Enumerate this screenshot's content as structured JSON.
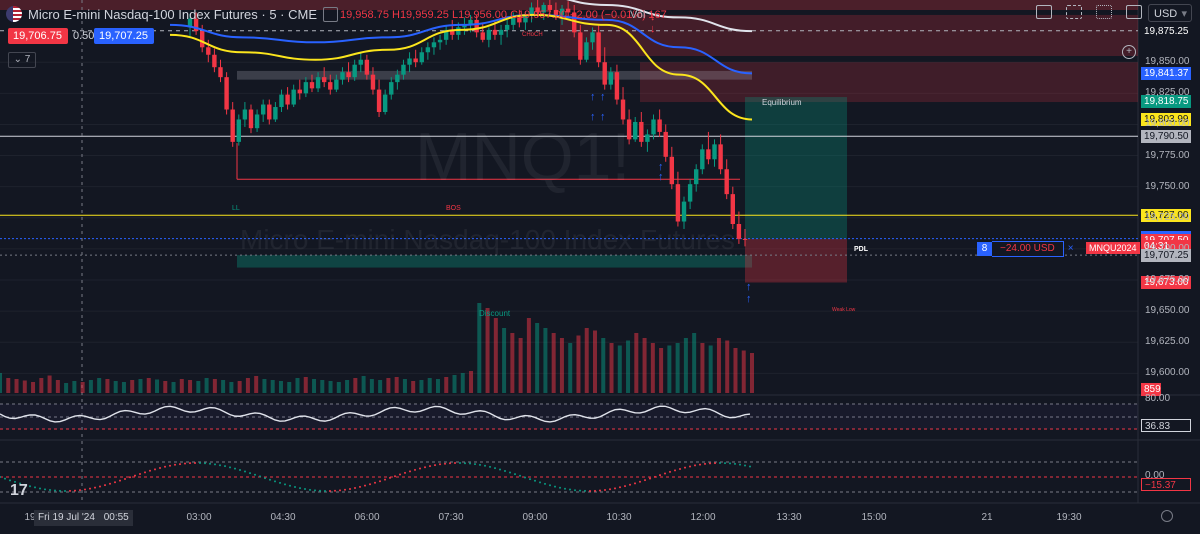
{
  "header": {
    "title": "Micro E-mini Nasdaq-100 Index Futures · 5 · CME",
    "open": "19,958.75",
    "high": "H19,959.25",
    "low": "L19,956.00",
    "close": "C19,957.00",
    "change": "−2.00 (−0.01%)",
    "vol_label": "Vol",
    "vol_value": "167"
  },
  "trade": {
    "sell_price": "19,706.75",
    "spread": "0.50",
    "buy_price": "19,707.25"
  },
  "collapse_label": "⌄ 7",
  "toolbar": {
    "currency": "USD",
    "icons": [
      "rectangle-icon",
      "indicators-icon",
      "alert-icon",
      "fullscreen-icon"
    ]
  },
  "position": {
    "qty": "8",
    "pnl": "−24.00 USD",
    "close_x": "×",
    "symbol": "MNQU2024"
  },
  "watermark": {
    "symbol": "MNQ1!",
    "name": "Micro E-mini Nasdaq-100 Index Futures"
  },
  "annotations": {
    "ll": "LL",
    "bos": "BOS",
    "choch": "CHoCH",
    "equilibrium": "Equilibrium",
    "discount": "Discount",
    "weak_low": "Weak Low",
    "pdl": "PDL",
    "bos2": "BOS"
  },
  "price_labels": [
    {
      "text": "19,875.25",
      "bg": "#131722",
      "fg": "#ffffff",
      "y": 19875.25
    },
    {
      "text": "19,841.37",
      "bg": "#2962ff",
      "fg": "#ffffff",
      "y": 19841.37
    },
    {
      "text": "19,818.75",
      "bg": "#089981",
      "fg": "#ffffff",
      "y": 19818.75
    },
    {
      "text": "19,803.99",
      "bg": "#fbe51d",
      "fg": "#131722",
      "y": 19803.99
    },
    {
      "text": "19,790.50",
      "bg": "#b2b5be",
      "fg": "#131722",
      "y": 19790.5
    },
    {
      "text": "19,727.00",
      "bg": "#fbe51d",
      "fg": "#131722",
      "y": 19727.0
    },
    {
      "text": "19,709.25",
      "bg": "#2962ff",
      "fg": "#ffffff",
      "y": 19709.25
    },
    {
      "text": "19,708.25",
      "bg": "#2962ff",
      "fg": "#ffffff",
      "y": 19708.25
    },
    {
      "text": "19,707.50",
      "bg": "#f23645",
      "fg": "#ffffff",
      "y": 19707.5
    },
    {
      "text": "04:31",
      "bg": "#f23645",
      "fg": "#ffffff",
      "y": 19702.0
    },
    {
      "text": "19,707.25",
      "bg": "#b2b5be",
      "fg": "#131722",
      "y": 19695.0
    },
    {
      "text": "19,673.00",
      "bg": "#f23645",
      "fg": "#ffffff",
      "y": 19673.0
    }
  ],
  "volume_label": "859",
  "osc1": {
    "level_top": "80.00",
    "value": "36.83"
  },
  "osc2": {
    "level": "0.00",
    "value": "−15.37"
  },
  "time_axis": {
    "date_box": "Fri 19 Jul '24",
    "date_time": "00:55",
    "first": "19",
    "ticks": [
      "03:00",
      "04:30",
      "06:00",
      "07:30",
      "09:00",
      "10:30",
      "12:00",
      "13:30",
      "15:00",
      "21",
      "19:30"
    ]
  },
  "colors": {
    "up": "#089981",
    "down": "#f23645",
    "ma_blue": "#2962ff",
    "ma_yellow": "#fbe51d",
    "ma_white": "#e0e3eb",
    "bg": "#131722"
  },
  "chart_data": {
    "type": "candlestick",
    "symbol": "MNQ1!",
    "interval": "5",
    "y_axis_ticks": [
      19850,
      19825,
      19800,
      19775,
      19750,
      19725,
      19700,
      19675,
      19650,
      19625,
      19600
    ],
    "ylim": [
      19585,
      19900
    ],
    "x_ticks": [
      "03:00",
      "04:30",
      "06:00",
      "07:30",
      "09:00",
      "10:30",
      "12:00",
      "13:30",
      "15:00",
      "21",
      "19:30"
    ],
    "candles": [
      [
        19878,
        19889,
        19870,
        19885
      ],
      [
        19885,
        19890,
        19872,
        19875
      ],
      [
        19875,
        19880,
        19858,
        19862
      ],
      [
        19862,
        19868,
        19850,
        19856
      ],
      [
        19856,
        19861,
        19842,
        19846
      ],
      [
        19846,
        19852,
        19834,
        19838
      ],
      [
        19838,
        19842,
        19808,
        19812
      ],
      [
        19812,
        19818,
        19782,
        19786
      ],
      [
        19786,
        19808,
        19783,
        19804
      ],
      [
        19804,
        19818,
        19798,
        19812
      ],
      [
        19812,
        19816,
        19793,
        19797
      ],
      [
        19797,
        19812,
        19794,
        19808
      ],
      [
        19808,
        19820,
        19802,
        19816
      ],
      [
        19816,
        19820,
        19800,
        19804
      ],
      [
        19804,
        19818,
        19802,
        19814
      ],
      [
        19814,
        19828,
        19810,
        19824
      ],
      [
        19824,
        19830,
        19812,
        19816
      ],
      [
        19816,
        19832,
        19814,
        19828
      ],
      [
        19828,
        19836,
        19820,
        19825
      ],
      [
        19825,
        19838,
        19822,
        19834
      ],
      [
        19834,
        19840,
        19826,
        19829
      ],
      [
        19829,
        19842,
        19826,
        19838
      ],
      [
        19838,
        19846,
        19830,
        19834
      ],
      [
        19834,
        19840,
        19824,
        19828
      ],
      [
        19828,
        19840,
        19826,
        19836
      ],
      [
        19836,
        19846,
        19832,
        19842
      ],
      [
        19842,
        19850,
        19834,
        19838
      ],
      [
        19838,
        19852,
        19835,
        19848
      ],
      [
        19848,
        19858,
        19842,
        19852
      ],
      [
        19852,
        19856,
        19836,
        19840
      ],
      [
        19840,
        19846,
        19824,
        19828
      ],
      [
        19828,
        19836,
        19806,
        19810
      ],
      [
        19810,
        19828,
        19808,
        19824
      ],
      [
        19824,
        19838,
        19820,
        19834
      ],
      [
        19834,
        19844,
        19828,
        19840
      ],
      [
        19840,
        19852,
        19836,
        19848
      ],
      [
        19848,
        19858,
        19842,
        19853
      ],
      [
        19853,
        19860,
        19846,
        19850
      ],
      [
        19850,
        19862,
        19848,
        19858
      ],
      [
        19858,
        19866,
        19852,
        19862
      ],
      [
        19862,
        19870,
        19856,
        19866
      ],
      [
        19866,
        19872,
        19860,
        19868
      ],
      [
        19868,
        19880,
        19864,
        19876
      ],
      [
        19876,
        19884,
        19868,
        19872
      ],
      [
        19872,
        19882,
        19868,
        19878
      ],
      [
        19878,
        19886,
        19872,
        19880
      ],
      [
        19880,
        19888,
        19874,
        19884
      ],
      [
        19884,
        19888,
        19870,
        19874
      ],
      [
        19874,
        19882,
        19866,
        19868
      ],
      [
        19868,
        19878,
        19862,
        19876
      ],
      [
        19876,
        19884,
        19868,
        19872
      ],
      [
        19872,
        19880,
        19864,
        19876
      ],
      [
        19876,
        19884,
        19870,
        19880
      ],
      [
        19880,
        19890,
        19876,
        19886
      ],
      [
        19886,
        19892,
        19878,
        19882
      ],
      [
        19882,
        19890,
        19876,
        19888
      ],
      [
        19888,
        19898,
        19882,
        19894
      ],
      [
        19894,
        19900,
        19886,
        19890
      ],
      [
        19890,
        19898,
        19884,
        19896
      ],
      [
        19896,
        19900,
        19888,
        19892
      ],
      [
        19892,
        19898,
        19884,
        19888
      ],
      [
        19888,
        19896,
        19880,
        19893
      ],
      [
        19893,
        19899,
        19886,
        19890
      ],
      [
        19890,
        19896,
        19870,
        19874
      ],
      [
        19874,
        19880,
        19848,
        19852
      ],
      [
        19852,
        19870,
        19850,
        19866
      ],
      [
        19866,
        19878,
        19860,
        19874
      ],
      [
        19874,
        19880,
        19846,
        19850
      ],
      [
        19850,
        19862,
        19828,
        19832
      ],
      [
        19832,
        19846,
        19828,
        19842
      ],
      [
        19842,
        19848,
        19816,
        19820
      ],
      [
        19820,
        19830,
        19800,
        19804
      ],
      [
        19804,
        19812,
        19784,
        19788
      ],
      [
        19788,
        19806,
        19786,
        19802
      ],
      [
        19802,
        19810,
        19782,
        19786
      ],
      [
        19786,
        19796,
        19778,
        19792
      ],
      [
        19792,
        19808,
        19788,
        19804
      ],
      [
        19804,
        19812,
        19790,
        19794
      ],
      [
        19794,
        19800,
        19770,
        19774
      ],
      [
        19774,
        19782,
        19748,
        19752
      ],
      [
        19752,
        19762,
        19718,
        19722
      ],
      [
        19722,
        19742,
        19716,
        19738
      ],
      [
        19738,
        19756,
        19732,
        19752
      ],
      [
        19752,
        19768,
        19746,
        19764
      ],
      [
        19764,
        19784,
        19760,
        19780
      ],
      [
        19780,
        19794,
        19768,
        19772
      ],
      [
        19772,
        19788,
        19766,
        19784
      ],
      [
        19784,
        19792,
        19760,
        19764
      ],
      [
        19764,
        19772,
        19740,
        19744
      ],
      [
        19744,
        19750,
        19716,
        19720
      ],
      [
        19720,
        19730,
        19704,
        19708
      ],
      [
        19708,
        19716,
        19702,
        19707.5
      ]
    ],
    "moving_averages": [
      {
        "name": "MA white",
        "color": "#e0e3eb",
        "values": [
          19902,
          19906,
          19910,
          19912,
          19910,
          19904,
          19896,
          19886,
          19875
        ]
      },
      {
        "name": "MA blue",
        "color": "#2962ff",
        "values": [
          19880,
          19870,
          19866,
          19870,
          19880,
          19888,
          19884,
          19862,
          19841
        ]
      },
      {
        "name": "MA yellow",
        "color": "#fbe51d",
        "values": [
          19872,
          19858,
          19852,
          19860,
          19876,
          19888,
          19880,
          19840,
          19804
        ]
      }
    ],
    "volume": [
      40,
      30,
      28,
      25,
      22,
      30,
      35,
      26,
      20,
      24,
      22,
      26,
      30,
      28,
      24,
      22,
      26,
      28,
      30,
      27,
      24,
      22,
      28,
      26,
      24,
      30,
      28,
      26,
      22,
      24,
      30,
      34,
      28,
      26,
      24,
      22,
      30,
      32,
      28,
      26,
      24,
      22,
      26,
      30,
      34,
      28,
      26,
      30,
      32,
      28,
      24,
      26,
      30,
      28,
      32,
      36,
      40,
      44,
      180,
      170,
      150,
      130,
      120,
      110,
      150,
      140,
      130,
      120,
      110,
      100,
      115,
      130,
      125,
      110,
      100,
      95,
      105,
      120,
      110,
      100,
      90,
      95,
      100,
      110,
      120,
      100,
      95,
      110,
      105,
      90,
      85,
      80
    ],
    "oscillator1": {
      "upper": 80.0,
      "last": 36.83
    },
    "oscillator2": {
      "zero": 0.0,
      "last": -15.37
    }
  }
}
